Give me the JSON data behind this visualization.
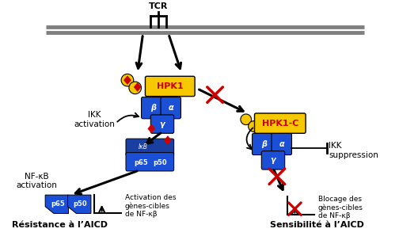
{
  "bg_color": "#ffffff",
  "blue": "#1a4fd6",
  "yellow": "#f5c800",
  "red": "#cc0000",
  "black": "#000000",
  "gray": "#808080",
  "text_resistance": "Résistance à l’AICD",
  "text_sensibility": "Sensibilité à l’AICD",
  "text_tcr": "TCR",
  "text_ikk_act": "IKK\nactivation",
  "text_ikk_sup": "IKK\nsuppression",
  "text_nfkb": "NF-κB\nactivation",
  "text_act_genes": "Activation des\ngènes-cibles\nde NF-κβ",
  "text_block_genes": "Blocage des\ngènes-cibles\nde NF-κβ",
  "text_hpk1": "HPK1",
  "text_hpk1c": "HPK1-C",
  "text_beta": "β",
  "text_alpha": "α",
  "text_gamma": "γ",
  "text_ikB": "IκB",
  "text_p65": "p65",
  "text_p50": "p50"
}
